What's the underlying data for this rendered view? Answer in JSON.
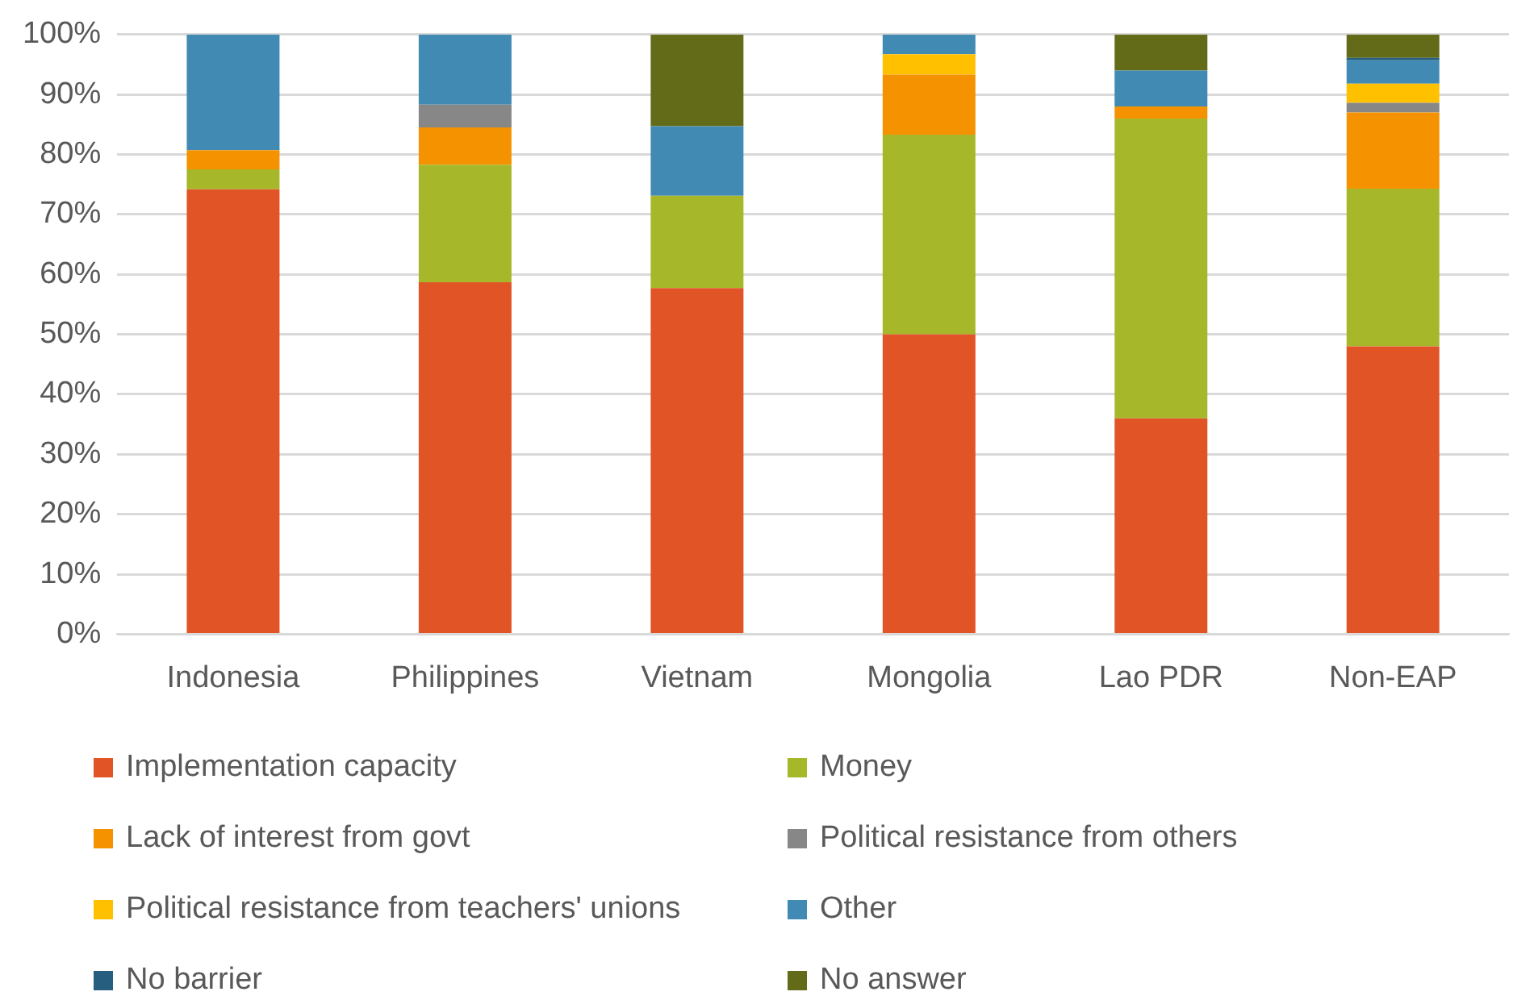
{
  "chart_data": {
    "type": "bar",
    "stacked": true,
    "categories": [
      "Indonesia",
      "Philippines",
      "Vietnam",
      "Mongolia",
      "Lao PDR",
      "Non-EAP"
    ],
    "ylim": [
      0,
      100
    ],
    "yticks": [
      {
        "value": 0,
        "label": "0%"
      },
      {
        "value": 10,
        "label": "10%"
      },
      {
        "value": 20,
        "label": "20%"
      },
      {
        "value": 30,
        "label": "30%"
      },
      {
        "value": 40,
        "label": "40%"
      },
      {
        "value": 50,
        "label": "50%"
      },
      {
        "value": 60,
        "label": "60%"
      },
      {
        "value": 70,
        "label": "70%"
      },
      {
        "value": 80,
        "label": "80%"
      },
      {
        "value": 90,
        "label": "90%"
      },
      {
        "value": 100,
        "label": "100%"
      }
    ],
    "grid": "y",
    "legend": "bottom",
    "series": [
      {
        "name": "Implementation capacity",
        "color": "#e05426",
        "values": [
          74.2,
          58.7,
          57.7,
          50,
          36,
          48
        ]
      },
      {
        "name": "Money",
        "color": "#a7b72a",
        "values": [
          3.3,
          19.6,
          15.4,
          33.3,
          50,
          26.3
        ]
      },
      {
        "name": "Lack of interest from govt",
        "color": "#f59200",
        "values": [
          3.2,
          6.2,
          0,
          10,
          2,
          12.7
        ]
      },
      {
        "name": "Political resistance from others",
        "color": "#878787",
        "values": [
          0,
          3.8,
          0,
          0,
          0,
          1.6
        ]
      },
      {
        "name": "Political resistance from teachers' unions",
        "color": "#ffc000",
        "values": [
          0,
          0,
          0,
          3.4,
          0,
          3.2
        ]
      },
      {
        "name": "Other",
        "color": "#418ab3",
        "values": [
          19.3,
          11.7,
          11.6,
          3.3,
          6,
          3.9
        ]
      },
      {
        "name": "No barrier",
        "color": "#255e7e",
        "values": [
          0,
          0,
          0,
          0,
          0,
          0.4
        ]
      },
      {
        "name": "No answer",
        "color": "#636b19",
        "values": [
          0,
          0,
          15.3,
          0,
          6,
          3.9
        ]
      }
    ]
  }
}
